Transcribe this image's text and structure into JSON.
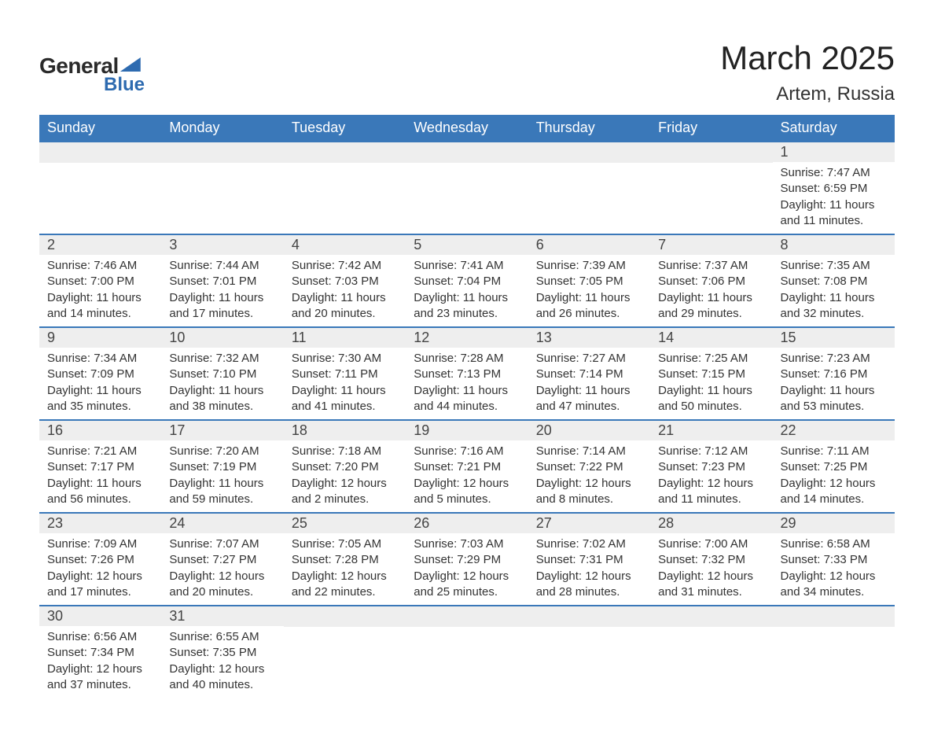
{
  "brand": {
    "word1": "General",
    "word2": "Blue"
  },
  "title": "March 2025",
  "subtitle": "Artem, Russia",
  "colors": {
    "header_bg": "#3a78b9",
    "header_text": "#ffffff",
    "daynum_bg": "#eeeeee",
    "row_divider": "#3a78b9",
    "brand_blue": "#2e6bb0"
  },
  "day_names": [
    "Sunday",
    "Monday",
    "Tuesday",
    "Wednesday",
    "Thursday",
    "Friday",
    "Saturday"
  ],
  "weeks": [
    [
      null,
      null,
      null,
      null,
      null,
      null,
      {
        "n": "1",
        "sunrise": "Sunrise: 7:47 AM",
        "sunset": "Sunset: 6:59 PM",
        "dl1": "Daylight: 11 hours",
        "dl2": "and 11 minutes."
      }
    ],
    [
      {
        "n": "2",
        "sunrise": "Sunrise: 7:46 AM",
        "sunset": "Sunset: 7:00 PM",
        "dl1": "Daylight: 11 hours",
        "dl2": "and 14 minutes."
      },
      {
        "n": "3",
        "sunrise": "Sunrise: 7:44 AM",
        "sunset": "Sunset: 7:01 PM",
        "dl1": "Daylight: 11 hours",
        "dl2": "and 17 minutes."
      },
      {
        "n": "4",
        "sunrise": "Sunrise: 7:42 AM",
        "sunset": "Sunset: 7:03 PM",
        "dl1": "Daylight: 11 hours",
        "dl2": "and 20 minutes."
      },
      {
        "n": "5",
        "sunrise": "Sunrise: 7:41 AM",
        "sunset": "Sunset: 7:04 PM",
        "dl1": "Daylight: 11 hours",
        "dl2": "and 23 minutes."
      },
      {
        "n": "6",
        "sunrise": "Sunrise: 7:39 AM",
        "sunset": "Sunset: 7:05 PM",
        "dl1": "Daylight: 11 hours",
        "dl2": "and 26 minutes."
      },
      {
        "n": "7",
        "sunrise": "Sunrise: 7:37 AM",
        "sunset": "Sunset: 7:06 PM",
        "dl1": "Daylight: 11 hours",
        "dl2": "and 29 minutes."
      },
      {
        "n": "8",
        "sunrise": "Sunrise: 7:35 AM",
        "sunset": "Sunset: 7:08 PM",
        "dl1": "Daylight: 11 hours",
        "dl2": "and 32 minutes."
      }
    ],
    [
      {
        "n": "9",
        "sunrise": "Sunrise: 7:34 AM",
        "sunset": "Sunset: 7:09 PM",
        "dl1": "Daylight: 11 hours",
        "dl2": "and 35 minutes."
      },
      {
        "n": "10",
        "sunrise": "Sunrise: 7:32 AM",
        "sunset": "Sunset: 7:10 PM",
        "dl1": "Daylight: 11 hours",
        "dl2": "and 38 minutes."
      },
      {
        "n": "11",
        "sunrise": "Sunrise: 7:30 AM",
        "sunset": "Sunset: 7:11 PM",
        "dl1": "Daylight: 11 hours",
        "dl2": "and 41 minutes."
      },
      {
        "n": "12",
        "sunrise": "Sunrise: 7:28 AM",
        "sunset": "Sunset: 7:13 PM",
        "dl1": "Daylight: 11 hours",
        "dl2": "and 44 minutes."
      },
      {
        "n": "13",
        "sunrise": "Sunrise: 7:27 AM",
        "sunset": "Sunset: 7:14 PM",
        "dl1": "Daylight: 11 hours",
        "dl2": "and 47 minutes."
      },
      {
        "n": "14",
        "sunrise": "Sunrise: 7:25 AM",
        "sunset": "Sunset: 7:15 PM",
        "dl1": "Daylight: 11 hours",
        "dl2": "and 50 minutes."
      },
      {
        "n": "15",
        "sunrise": "Sunrise: 7:23 AM",
        "sunset": "Sunset: 7:16 PM",
        "dl1": "Daylight: 11 hours",
        "dl2": "and 53 minutes."
      }
    ],
    [
      {
        "n": "16",
        "sunrise": "Sunrise: 7:21 AM",
        "sunset": "Sunset: 7:17 PM",
        "dl1": "Daylight: 11 hours",
        "dl2": "and 56 minutes."
      },
      {
        "n": "17",
        "sunrise": "Sunrise: 7:20 AM",
        "sunset": "Sunset: 7:19 PM",
        "dl1": "Daylight: 11 hours",
        "dl2": "and 59 minutes."
      },
      {
        "n": "18",
        "sunrise": "Sunrise: 7:18 AM",
        "sunset": "Sunset: 7:20 PM",
        "dl1": "Daylight: 12 hours",
        "dl2": "and 2 minutes."
      },
      {
        "n": "19",
        "sunrise": "Sunrise: 7:16 AM",
        "sunset": "Sunset: 7:21 PM",
        "dl1": "Daylight: 12 hours",
        "dl2": "and 5 minutes."
      },
      {
        "n": "20",
        "sunrise": "Sunrise: 7:14 AM",
        "sunset": "Sunset: 7:22 PM",
        "dl1": "Daylight: 12 hours",
        "dl2": "and 8 minutes."
      },
      {
        "n": "21",
        "sunrise": "Sunrise: 7:12 AM",
        "sunset": "Sunset: 7:23 PM",
        "dl1": "Daylight: 12 hours",
        "dl2": "and 11 minutes."
      },
      {
        "n": "22",
        "sunrise": "Sunrise: 7:11 AM",
        "sunset": "Sunset: 7:25 PM",
        "dl1": "Daylight: 12 hours",
        "dl2": "and 14 minutes."
      }
    ],
    [
      {
        "n": "23",
        "sunrise": "Sunrise: 7:09 AM",
        "sunset": "Sunset: 7:26 PM",
        "dl1": "Daylight: 12 hours",
        "dl2": "and 17 minutes."
      },
      {
        "n": "24",
        "sunrise": "Sunrise: 7:07 AM",
        "sunset": "Sunset: 7:27 PM",
        "dl1": "Daylight: 12 hours",
        "dl2": "and 20 minutes."
      },
      {
        "n": "25",
        "sunrise": "Sunrise: 7:05 AM",
        "sunset": "Sunset: 7:28 PM",
        "dl1": "Daylight: 12 hours",
        "dl2": "and 22 minutes."
      },
      {
        "n": "26",
        "sunrise": "Sunrise: 7:03 AM",
        "sunset": "Sunset: 7:29 PM",
        "dl1": "Daylight: 12 hours",
        "dl2": "and 25 minutes."
      },
      {
        "n": "27",
        "sunrise": "Sunrise: 7:02 AM",
        "sunset": "Sunset: 7:31 PM",
        "dl1": "Daylight: 12 hours",
        "dl2": "and 28 minutes."
      },
      {
        "n": "28",
        "sunrise": "Sunrise: 7:00 AM",
        "sunset": "Sunset: 7:32 PM",
        "dl1": "Daylight: 12 hours",
        "dl2": "and 31 minutes."
      },
      {
        "n": "29",
        "sunrise": "Sunrise: 6:58 AM",
        "sunset": "Sunset: 7:33 PM",
        "dl1": "Daylight: 12 hours",
        "dl2": "and 34 minutes."
      }
    ],
    [
      {
        "n": "30",
        "sunrise": "Sunrise: 6:56 AM",
        "sunset": "Sunset: 7:34 PM",
        "dl1": "Daylight: 12 hours",
        "dl2": "and 37 minutes."
      },
      {
        "n": "31",
        "sunrise": "Sunrise: 6:55 AM",
        "sunset": "Sunset: 7:35 PM",
        "dl1": "Daylight: 12 hours",
        "dl2": "and 40 minutes."
      },
      null,
      null,
      null,
      null,
      null
    ]
  ]
}
